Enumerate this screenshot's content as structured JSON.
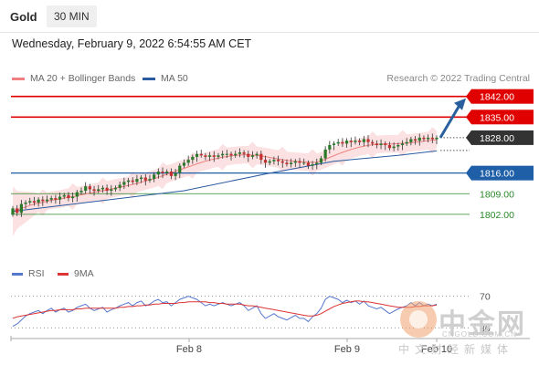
{
  "header": {
    "asset": "Gold",
    "interval": "30 MIN",
    "datetime": "Wednesday, February 9, 2022 6:54:55 AM CET"
  },
  "legend": {
    "ma20": "MA 20 + Bollinger Bands",
    "ma50": "MA 50",
    "copyright": "Research © 2022 Trading Central"
  },
  "rsi_legend": {
    "rsi": "RSI",
    "ma9": "9MA"
  },
  "watermark": {
    "name": "中金网",
    "url": "CNGOLD.COM.CN",
    "sub": "中文财经新媒体"
  },
  "colors": {
    "resistance": "#e00000",
    "support": "#1f5fa8",
    "target": "#2a8a2a",
    "last_price": "#333333",
    "ma20": "#f08080",
    "ma50": "#2a5aa0",
    "bands": "#f9d4d4",
    "rsi": "#5577cc",
    "rsi_ma": "#dd3333",
    "up_candle": "#2a7a2a",
    "down_candle": "#c43030",
    "arrow": "#2a5f9e"
  },
  "chart_data": {
    "type": "candlestick",
    "price_levels": [
      {
        "label": "1842.00",
        "value": 1842.0,
        "kind": "resistance"
      },
      {
        "label": "1835.00",
        "value": 1835.0,
        "kind": "resistance"
      },
      {
        "label": "1828.00",
        "value": 1828.0,
        "kind": "last_price"
      },
      {
        "label": "1816.00",
        "value": 1816.0,
        "kind": "pivot"
      },
      {
        "label": "1809.00",
        "value": 1809.0,
        "kind": "support"
      },
      {
        "label": "1802.00",
        "value": 1802.0,
        "kind": "support"
      }
    ],
    "ylim": [
      1790.5,
      1845.0
    ],
    "x_ticks": [
      "Feb 8",
      "Feb 9",
      "Feb 10"
    ],
    "close": [
      1804.0,
      1802.5,
      1805.5,
      1806.0,
      1806.5,
      1806.0,
      1807.0,
      1806.5,
      1807.0,
      1807.5,
      1807.0,
      1808.0,
      1808.5,
      1807.5,
      1808.0,
      1809.5,
      1810.0,
      1811.5,
      1810.5,
      1810.0,
      1810.5,
      1811.0,
      1810.0,
      1810.5,
      1811.0,
      1812.0,
      1813.0,
      1813.5,
      1813.0,
      1814.0,
      1814.5,
      1813.5,
      1814.0,
      1815.5,
      1816.5,
      1816.0,
      1816.5,
      1815.0,
      1816.0,
      1818.5,
      1819.5,
      1820.5,
      1821.5,
      1822.5,
      1822.0,
      1821.5,
      1822.0,
      1821.5,
      1822.0,
      1822.5,
      1822.5,
      1822.0,
      1822.5,
      1823.0,
      1822.5,
      1821.5,
      1822.0,
      1822.5,
      1820.5,
      1819.5,
      1820.0,
      1820.5,
      1820.0,
      1819.5,
      1819.0,
      1819.5,
      1820.0,
      1819.5,
      1819.5,
      1818.5,
      1819.0,
      1819.5,
      1821.0,
      1824.0,
      1825.5,
      1826.0,
      1826.5,
      1826.0,
      1827.0,
      1826.5,
      1827.0,
      1826.5,
      1827.5,
      1826.5,
      1826.0,
      1825.5,
      1826.0,
      1825.5,
      1824.5,
      1825.0,
      1825.5,
      1826.0,
      1826.5,
      1827.5,
      1827.0,
      1828.0,
      1827.5,
      1828.0,
      1827.5,
      1828.0
    ],
    "ma20": [
      1803.0,
      1803.5,
      1804.0,
      1804.5,
      1805.0,
      1805.5,
      1805.8,
      1806.0,
      1806.4,
      1806.8,
      1807.0,
      1807.2,
      1807.5,
      1807.8,
      1808.0,
      1808.3,
      1808.6,
      1808.9,
      1809.2,
      1809.5,
      1809.8,
      1810.0,
      1810.3,
      1810.6,
      1810.9,
      1811.2,
      1811.5,
      1811.8,
      1812.1,
      1812.5,
      1812.9,
      1813.3,
      1813.7,
      1814.1,
      1814.6,
      1815.1,
      1815.6,
      1816.1,
      1816.6,
      1817.1,
      1817.6,
      1818.1,
      1818.6,
      1819.1,
      1819.6,
      1820.0,
      1820.4,
      1820.8,
      1821.1,
      1821.4,
      1821.6,
      1821.8,
      1822.0,
      1822.1,
      1822.2,
      1822.2,
      1822.1,
      1822.0,
      1821.8,
      1821.6,
      1821.3,
      1821.0,
      1820.8,
      1820.5,
      1820.3,
      1820.1,
      1820.0,
      1819.9,
      1819.8,
      1819.7,
      1819.6,
      1819.7,
      1820.1,
      1820.7,
      1821.3,
      1821.9,
      1822.5,
      1823.0,
      1823.5,
      1824.0,
      1824.4,
      1824.8,
      1825.1,
      1825.4,
      1825.6,
      1825.7,
      1825.8,
      1825.9,
      1825.9,
      1825.9,
      1826.0,
      1826.1,
      1826.2,
      1826.3,
      1826.5,
      1826.6,
      1826.8,
      1827.0,
      1827.1,
      1827.3
    ],
    "ma50": [
      1803.0,
      1810.0,
      1816.0,
      1820.0,
      1822.0,
      1823.5
    ],
    "ma50_x_index": [
      0,
      40,
      60,
      75,
      90,
      99
    ],
    "rsi_ticks": [
      70,
      30
    ],
    "rsi": [
      32,
      35,
      40,
      45,
      48,
      50,
      52,
      48,
      52,
      55,
      50,
      53,
      55,
      50,
      52,
      56,
      58,
      60,
      55,
      52,
      54,
      56,
      50,
      53,
      55,
      58,
      60,
      62,
      58,
      62,
      64,
      58,
      60,
      64,
      66,
      62,
      63,
      58,
      62,
      66,
      68,
      70,
      68,
      66,
      62,
      58,
      60,
      58,
      60,
      62,
      60,
      58,
      60,
      62,
      58,
      52,
      55,
      58,
      48,
      42,
      45,
      48,
      44,
      42,
      40,
      43,
      46,
      42,
      42,
      38,
      44,
      48,
      55,
      66,
      70,
      68,
      66,
      62,
      65,
      62,
      64,
      60,
      64,
      58,
      56,
      54,
      56,
      52,
      48,
      51,
      54,
      56,
      58,
      62,
      58,
      62,
      58,
      60,
      58,
      60
    ],
    "rsi_ma": [
      42,
      44,
      45,
      46,
      47,
      48,
      49,
      50,
      51,
      52,
      52,
      53,
      53,
      53,
      53,
      54,
      54,
      55,
      55,
      55,
      55,
      55,
      55,
      55,
      55,
      56,
      56,
      57,
      57,
      58,
      58,
      59,
      59,
      60,
      60,
      61,
      61,
      61,
      61,
      62,
      62,
      63,
      63,
      63,
      63,
      63,
      62,
      62,
      61,
      61,
      60,
      60,
      60,
      60,
      59,
      58,
      58,
      57,
      56,
      55,
      54,
      53,
      52,
      51,
      50,
      49,
      48,
      47,
      46,
      45,
      45,
      46,
      48,
      51,
      54,
      57,
      59,
      61,
      62,
      63,
      64,
      64,
      63,
      63,
      62,
      61,
      60,
      59,
      58,
      57,
      56,
      56,
      56,
      56,
      57,
      57,
      58,
      58,
      58,
      59
    ],
    "forecast": {
      "from": 1828.0,
      "to": 1842.0
    }
  }
}
